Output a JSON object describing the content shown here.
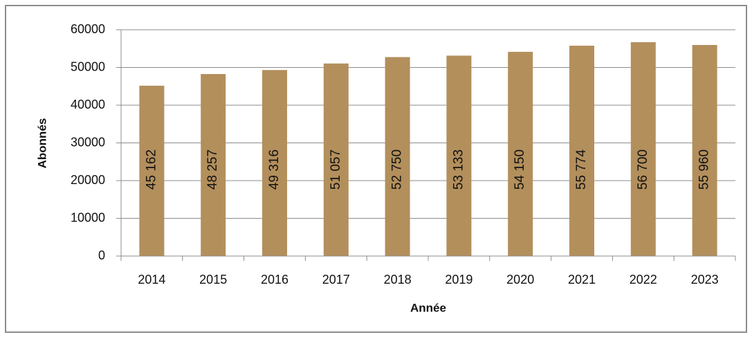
{
  "chart_data": {
    "type": "bar",
    "categories": [
      "2014",
      "2015",
      "2016",
      "2017",
      "2018",
      "2019",
      "2020",
      "2021",
      "2022",
      "2023"
    ],
    "values": [
      45162,
      48257,
      49316,
      51057,
      52750,
      53133,
      54150,
      55774,
      56700,
      55960
    ],
    "value_labels": [
      "45 162",
      "48 257",
      "49 316",
      "51 057",
      "52 750",
      "53 133",
      "54 150",
      "55 774",
      "56 700",
      "55 960"
    ],
    "color": "#b38f5c",
    "x_label": "Année",
    "y_label": "Abonnés",
    "ylim": [
      0,
      60000
    ],
    "yticks": [
      0,
      10000,
      20000,
      30000,
      40000,
      50000,
      60000
    ],
    "grid": true
  }
}
